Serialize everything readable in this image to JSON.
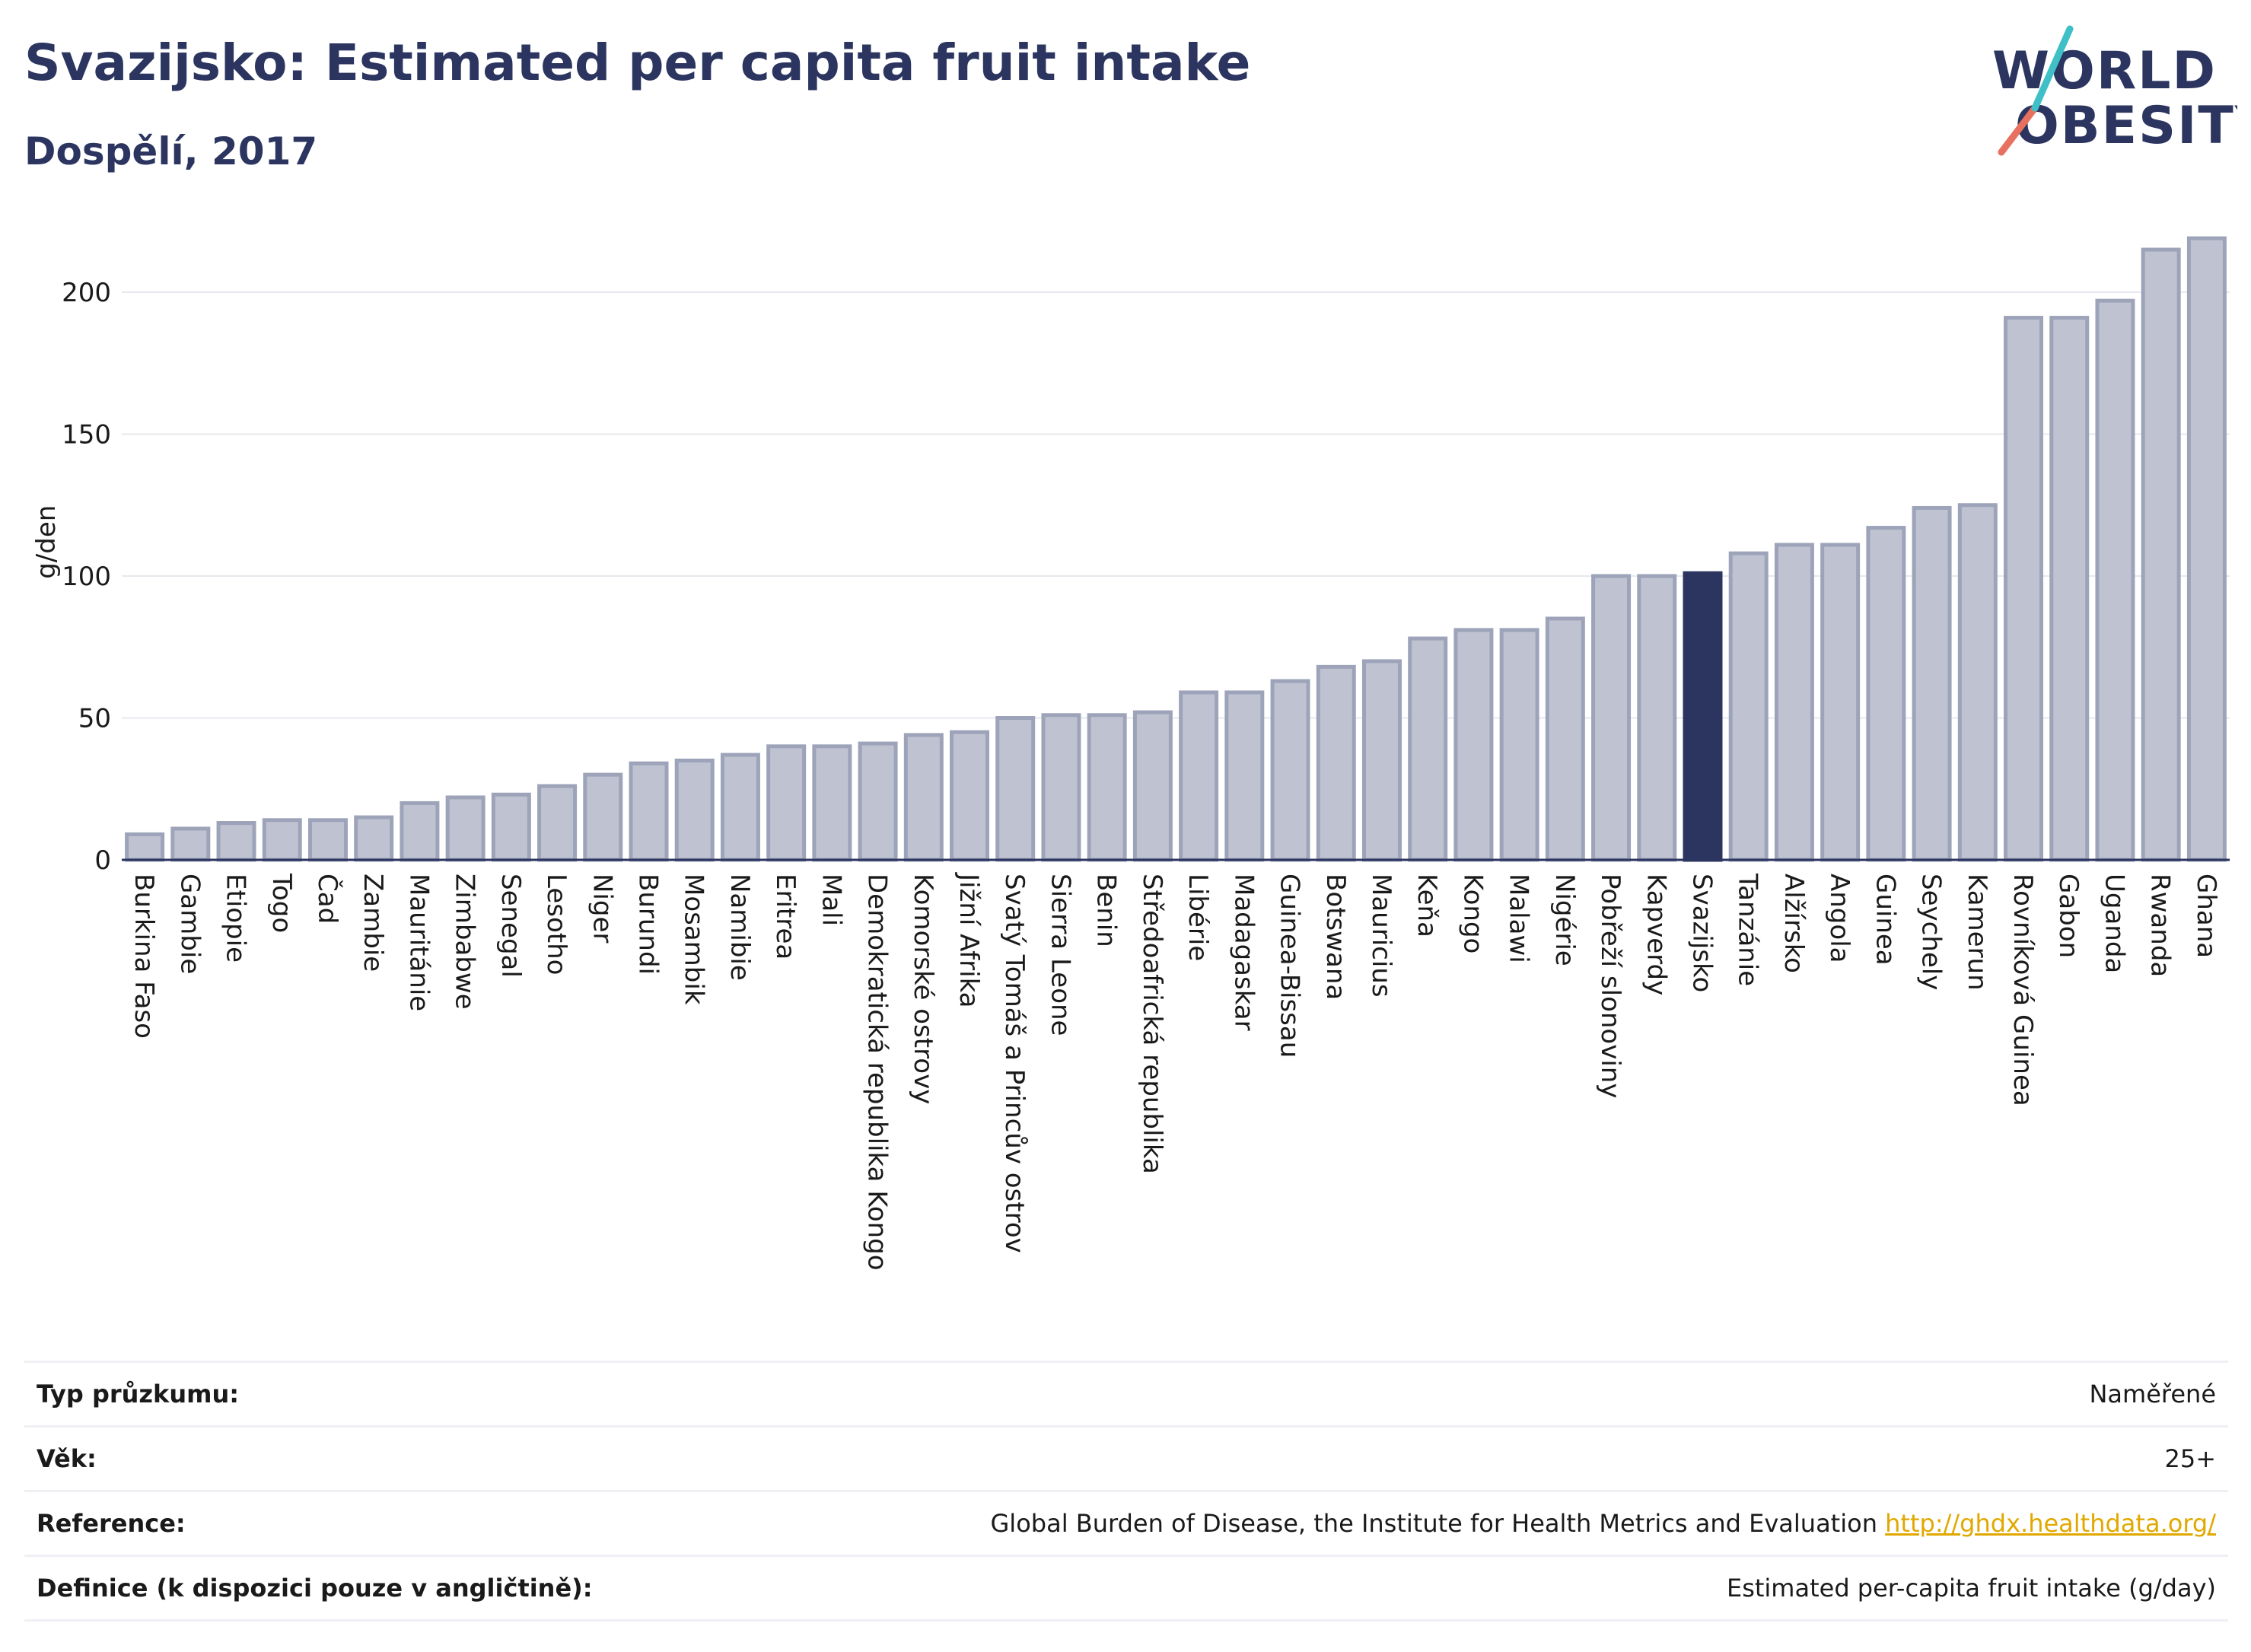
{
  "header": {
    "title": "Svazijsko: Estimated per capita fruit intake",
    "subtitle": "Dospělí, 2017"
  },
  "logo": {
    "line1": "WORLD",
    "line2": "OBESITY"
  },
  "colors": {
    "bar": "#bfc3d1",
    "bar_stroke": "#9da3b9",
    "highlight": "#2b3560",
    "grid": "#e6e8ee"
  },
  "chart_data": {
    "type": "bar",
    "ylabel": "g/den",
    "ylim": [
      0,
      225
    ],
    "yticks": [
      0,
      50,
      100,
      150,
      200
    ],
    "grid": true,
    "highlight": "Svazijsko",
    "categories": [
      "Burkina Faso",
      "Gambie",
      "Etiopie",
      "Togo",
      "Čad",
      "Zambie",
      "Mauritánie",
      "Zimbabwe",
      "Senegal",
      "Lesotho",
      "Niger",
      "Burundi",
      "Mosambik",
      "Namibie",
      "Eritrea",
      "Mali",
      "Demokratická republika Kongo",
      "Komorské ostrovy",
      "Jižní Afrika",
      "Svatý Tomáš a Princův ostrov",
      "Sierra Leone",
      "Benin",
      "Středoafrická republika",
      "Libérie",
      "Madagaskar",
      "Guinea-Bissau",
      "Botswana",
      "Mauricius",
      "Keňa",
      "Kongo",
      "Malawi",
      "Nigérie",
      "Pobřeží slonoviny",
      "Kapverdy",
      "Svazijsko",
      "Tanzánie",
      "Alžírsko",
      "Angola",
      "Guinea",
      "Seychely",
      "Kamerun",
      "Rovníková Guinea",
      "Gabon",
      "Uganda",
      "Rwanda",
      "Ghana"
    ],
    "values": [
      9,
      11,
      13,
      14,
      14,
      15,
      20,
      22,
      23,
      26,
      30,
      34,
      35,
      37,
      40,
      40,
      41,
      44,
      45,
      50,
      51,
      51,
      52,
      59,
      59,
      63,
      68,
      70,
      78,
      81,
      81,
      85,
      100,
      100,
      101,
      108,
      111,
      111,
      117,
      124,
      125,
      191,
      191,
      197,
      215,
      219
    ]
  },
  "meta": [
    {
      "label": "Typ průzkumu:",
      "value": "Naměřené"
    },
    {
      "label": "Věk:",
      "value": "25+"
    },
    {
      "label": "Reference:",
      "value": "Global Burden of Disease, the Institute for Health Metrics and Evaluation",
      "link": "http://ghdx.healthdata.org/"
    },
    {
      "label": "Definice (k dispozici pouze v angličtině):",
      "value": "Estimated per-capita fruit intake (g/day)"
    }
  ]
}
